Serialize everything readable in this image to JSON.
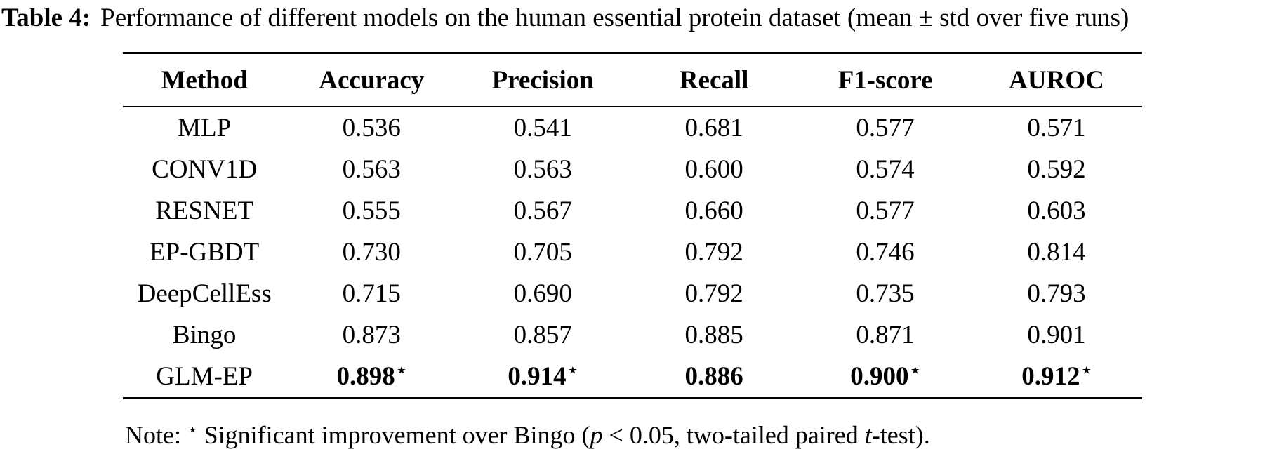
{
  "page": {
    "background_color": "#ffffff",
    "text_color": "#000000"
  },
  "caption": {
    "label": "Table 4:",
    "text": "Performance of different models on the human essential protein dataset (mean ± std over five runs)"
  },
  "table": {
    "star_char": "⋆",
    "columns": [
      "Method",
      "Accuracy",
      "Precision",
      "Recall",
      "F1-score",
      "AUROC"
    ],
    "rows": [
      {
        "method": "MLP",
        "values": [
          "0.536",
          "0.541",
          "0.681",
          "0.577",
          "0.571"
        ],
        "bold": false,
        "starred": [
          false,
          false,
          false,
          false,
          false
        ]
      },
      {
        "method": "CONV1D",
        "values": [
          "0.563",
          "0.563",
          "0.600",
          "0.574",
          "0.592"
        ],
        "bold": false,
        "starred": [
          false,
          false,
          false,
          false,
          false
        ]
      },
      {
        "method": "RESNET",
        "values": [
          "0.555",
          "0.567",
          "0.660",
          "0.577",
          "0.603"
        ],
        "bold": false,
        "starred": [
          false,
          false,
          false,
          false,
          false
        ]
      },
      {
        "method": "EP-GBDT",
        "values": [
          "0.730",
          "0.705",
          "0.792",
          "0.746",
          "0.814"
        ],
        "bold": false,
        "starred": [
          false,
          false,
          false,
          false,
          false
        ]
      },
      {
        "method": "DeepCellEss",
        "values": [
          "0.715",
          "0.690",
          "0.792",
          "0.735",
          "0.793"
        ],
        "bold": false,
        "starred": [
          false,
          false,
          false,
          false,
          false
        ]
      },
      {
        "method": "Bingo",
        "values": [
          "0.873",
          "0.857",
          "0.885",
          "0.871",
          "0.901"
        ],
        "bold": false,
        "starred": [
          false,
          false,
          false,
          false,
          false
        ]
      },
      {
        "method": "GLM-EP",
        "values": [
          "0.898",
          "0.914",
          "0.886",
          "0.900",
          "0.912"
        ],
        "bold": true,
        "starred": [
          true,
          true,
          false,
          true,
          true
        ]
      }
    ]
  },
  "note": {
    "segments": [
      {
        "text": "Note: ",
        "style": "normal"
      },
      {
        "text": "⋆",
        "style": "star"
      },
      {
        "text": " Significant improvement over Bingo (",
        "style": "normal"
      },
      {
        "text": "p",
        "style": "italic"
      },
      {
        "text": " < 0.05, two-tailed paired ",
        "style": "normal"
      },
      {
        "text": "t",
        "style": "italic"
      },
      {
        "text": "-test).",
        "style": "normal"
      }
    ]
  }
}
